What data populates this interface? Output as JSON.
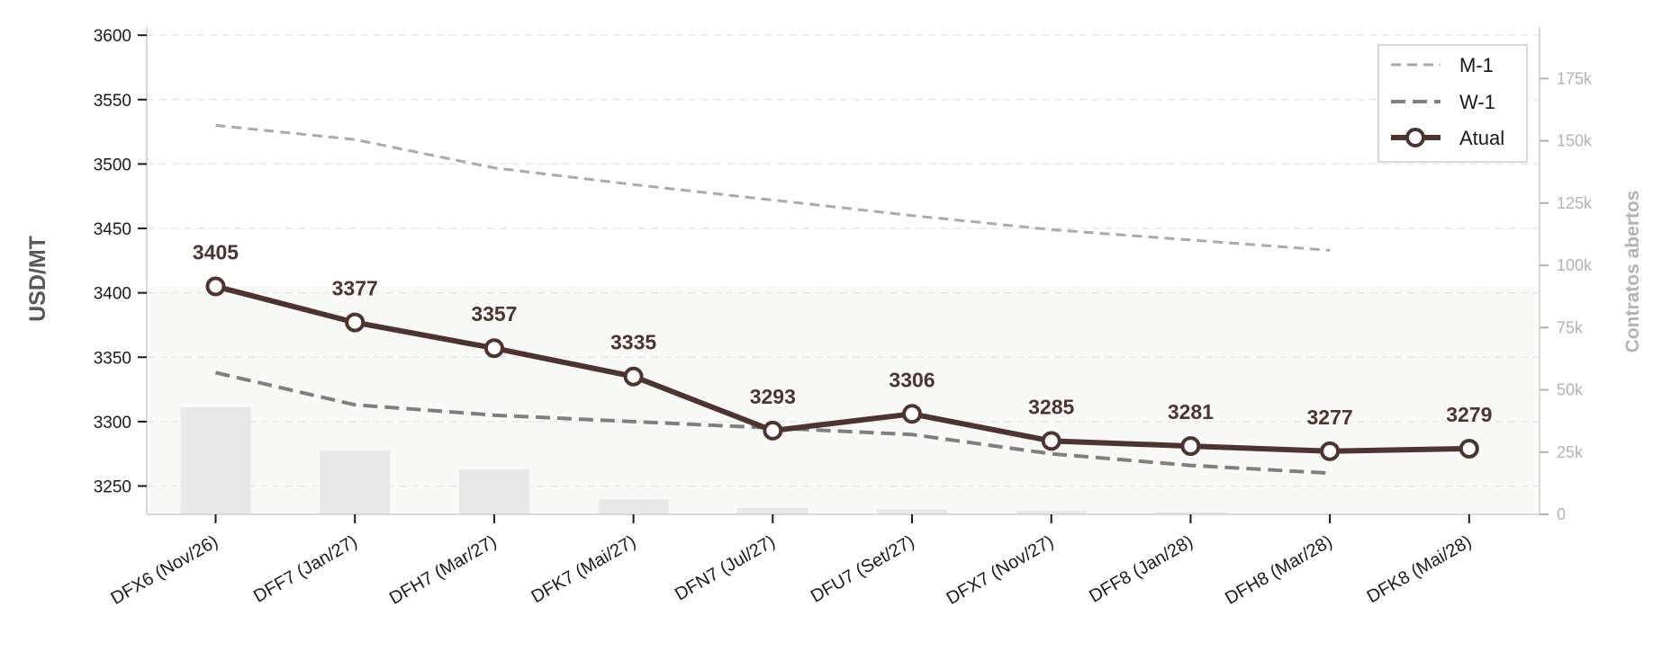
{
  "chart_data": {
    "type": "line",
    "categories": [
      "DFX6 (Nov/26)",
      "DFF7 (Jan/27)",
      "DFH7 (Mar/27)",
      "DFK7 (Mai/27)",
      "DFN7 (Jul/27)",
      "DFU7 (Set/27)",
      "DFX7 (Nov/27)",
      "DFF8 (Jan/28)",
      "DFH8 (Mar/28)",
      "DFK8 (Mai/28)"
    ],
    "ylabel": "USD/MT",
    "ylabel_right": "Contratos abertos",
    "ylim": [
      3228,
      3605
    ],
    "ylim_right": [
      0,
      195000
    ],
    "yticks": [
      3250,
      3300,
      3350,
      3400,
      3450,
      3500,
      3550,
      3600
    ],
    "yticks_labels": [
      "3250",
      "3300",
      "3350",
      "3400",
      "3450",
      "3500",
      "3550",
      "3600"
    ],
    "yticks_right": [
      0,
      25000,
      50000,
      75000,
      100000,
      125000,
      150000,
      175000
    ],
    "yticks_right_labels": [
      "0",
      "25k",
      "50k",
      "75k",
      "100k",
      "125k",
      "150k",
      "175k"
    ],
    "grid": true,
    "legend_position": "top-right",
    "series": [
      {
        "name": "M-1",
        "style": "dashed",
        "color": "#aaaaaa",
        "values": [
          3530,
          3519,
          3497,
          3484,
          3472,
          3460,
          3449,
          3441,
          3433,
          null
        ]
      },
      {
        "name": "W-1",
        "style": "dashed",
        "color": "#7f7f7f",
        "values": [
          3338,
          3313,
          3305,
          3300,
          3295,
          3290,
          3275,
          3266,
          3260,
          null
        ]
      },
      {
        "name": "Atual",
        "style": "solid-markers",
        "color": "#4e342e",
        "values": [
          3405,
          3377,
          3357,
          3335,
          3293,
          3306,
          3285,
          3281,
          3277,
          3279
        ]
      }
    ],
    "data_labels": [
      "3405",
      "3377",
      "3357",
      "3335",
      "3293",
      "3306",
      "3285",
      "3281",
      "3277",
      "3279"
    ],
    "bars": {
      "axis": "right",
      "color": "#e8e8e8",
      "values": [
        43000,
        25500,
        18000,
        6000,
        2500,
        2000,
        1500,
        1000,
        0,
        0
      ]
    }
  }
}
